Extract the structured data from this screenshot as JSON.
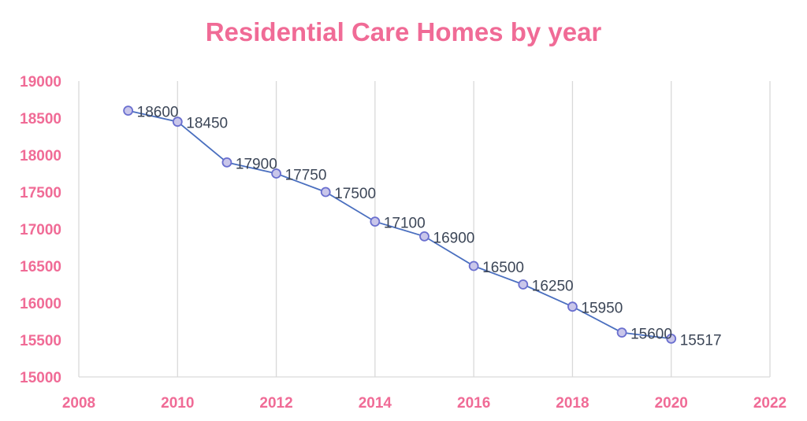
{
  "chart_data": {
    "type": "scatter",
    "title": "Residential Care Homes by year",
    "xlabel": "",
    "ylabel": "",
    "xlim": [
      2008,
      2022
    ],
    "ylim": [
      15000,
      19000
    ],
    "x_ticks": [
      "2008",
      "2010",
      "2012",
      "2014",
      "2016",
      "2018",
      "2020",
      "2022"
    ],
    "y_ticks": [
      "15000",
      "15500",
      "16000",
      "16500",
      "17000",
      "17500",
      "18000",
      "18500",
      "19000"
    ],
    "grid": "vertical",
    "series": [
      {
        "x": [
          2009,
          2010,
          2011,
          2012,
          2013,
          2014,
          2015,
          2016,
          2017,
          2018,
          2019,
          2020
        ],
        "y": [
          18600,
          18450,
          17900,
          17750,
          17500,
          17100,
          16900,
          16500,
          16250,
          15950,
          15600,
          15517
        ],
        "labels": [
          "18600",
          "18450",
          "17900",
          "17750",
          "17500",
          "17100",
          "16900",
          "16500",
          "16250",
          "15950",
          "15600",
          "15517"
        ]
      }
    ],
    "colors": {
      "title": "#f06b96",
      "ticks": "#f06b96",
      "line": "#4a6fbf",
      "marker_fill": "#c9c6ea",
      "marker_stroke": "#6a6fcf",
      "grid": "#d9d9d9",
      "labels": "#3c4657"
    }
  }
}
